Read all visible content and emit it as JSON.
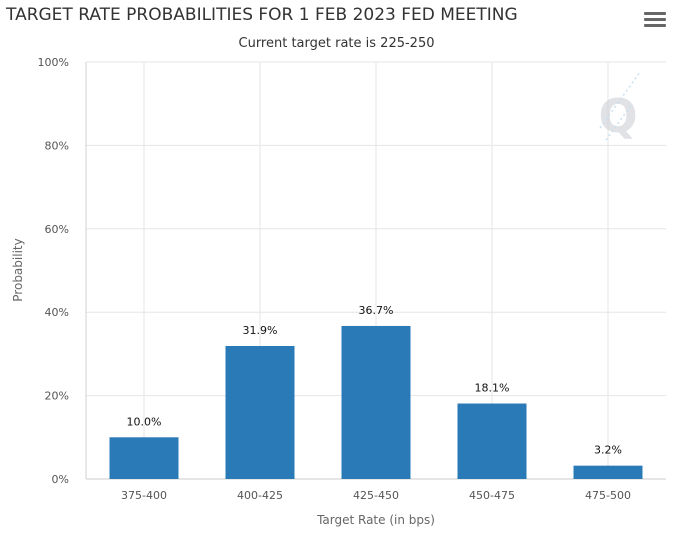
{
  "chart_data": {
    "type": "bar",
    "title": "TARGET RATE PROBABILITIES FOR 1 FEB 2023 FED MEETING",
    "subtitle": "Current target rate is 225-250",
    "xlabel": "Target Rate (in bps)",
    "ylabel": "Probability",
    "categories": [
      "375-400",
      "400-425",
      "425-450",
      "450-475",
      "475-500"
    ],
    "values": [
      10.0,
      31.9,
      36.7,
      18.1,
      3.2
    ],
    "data_labels": [
      "10.0%",
      "31.9%",
      "36.7%",
      "18.1%",
      "3.2%"
    ],
    "y_ticks": [
      "0%",
      "20%",
      "40%",
      "60%",
      "80%",
      "100%"
    ],
    "ylim": [
      0,
      100
    ],
    "grid": true,
    "bar_color": "#2a7ab8",
    "watermark": "Q"
  },
  "menu": {
    "icon": "hamburger-menu-icon"
  }
}
